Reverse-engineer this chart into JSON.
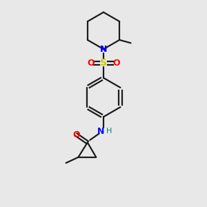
{
  "background_color": "#e8e8e8",
  "bond_color": "#1a1a1a",
  "N_color": "#0000ff",
  "O_color": "#ff0000",
  "S_color": "#cccc00",
  "NH_color": "#008080",
  "figsize": [
    3.0,
    3.0
  ],
  "dpi": 100,
  "xlim": [
    0,
    10
  ],
  "ylim": [
    0,
    10
  ]
}
